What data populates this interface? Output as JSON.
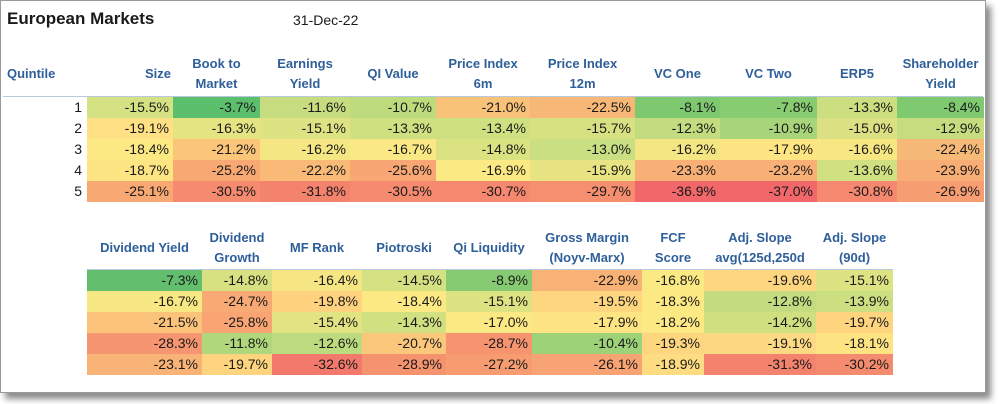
{
  "title": "European Markets",
  "date": "31-Dec-22",
  "table1": {
    "headers": [
      "Quintile",
      "Size",
      "Book to\nMarket",
      "Earnings\nYield",
      "QI Value",
      "Price Index\n6m",
      "Price Index\n12m",
      "VC One",
      "VC Two",
      "ERP5",
      "Shareholder\nYield"
    ],
    "rows": [
      {
        "quintile": "1",
        "values": [
          "-15.5%",
          "-3.7%",
          "-11.6%",
          "-10.7%",
          "-21.0%",
          "-22.5%",
          "-8.1%",
          "-7.8%",
          "-13.3%",
          "-8.4%"
        ],
        "colors": [
          "#d4e283",
          "#5cbf6d",
          "#c6dc7f",
          "#bddb7d",
          "#f8c379",
          "#f7b877",
          "#7ec970",
          "#88cc71",
          "#cbdf81",
          "#7fc970"
        ]
      },
      {
        "quintile": "2",
        "values": [
          "-19.1%",
          "-16.3%",
          "-15.1%",
          "-13.3%",
          "-13.4%",
          "-15.7%",
          "-12.3%",
          "-10.9%",
          "-15.0%",
          "-12.9%"
        ],
        "colors": [
          "#ffe084",
          "#e5e483",
          "#dde282",
          "#cfe081",
          "#cfe081",
          "#d8e182",
          "#c2dc7f",
          "#a9d57a",
          "#dbe182",
          "#c6dc7f"
        ]
      },
      {
        "quintile": "3",
        "values": [
          "-18.4%",
          "-21.2%",
          "-16.2%",
          "-16.7%",
          "-14.8%",
          "-13.0%",
          "-16.2%",
          "-17.9%",
          "-16.6%",
          "-22.4%"
        ],
        "colors": [
          "#fde983",
          "#fbc57a",
          "#f4e683",
          "#f9e883",
          "#dae282",
          "#c9df81",
          "#f4e683",
          "#fee482",
          "#f7e783",
          "#f7b977"
        ]
      },
      {
        "quintile": "4",
        "values": [
          "-18.7%",
          "-25.2%",
          "-22.2%",
          "-25.6%",
          "-16.9%",
          "-15.9%",
          "-23.3%",
          "-23.2%",
          "-13.6%",
          "-23.9%"
        ],
        "colors": [
          "#fee583",
          "#f8a873",
          "#f9ba78",
          "#f8a673",
          "#fbe983",
          "#e9e483",
          "#f8b076",
          "#f8b076",
          "#d1e081",
          "#f8ad75"
        ]
      },
      {
        "quintile": "5",
        "values": [
          "-25.1%",
          "-30.5%",
          "-31.8%",
          "-30.5%",
          "-30.7%",
          "-29.7%",
          "-36.9%",
          "-37.0%",
          "-30.8%",
          "-26.9%"
        ],
        "colors": [
          "#f8a873",
          "#f58a6e",
          "#f4836d",
          "#f58a6e",
          "#f5886e",
          "#f68f6f",
          "#f1676a",
          "#f1676a",
          "#f5886e",
          "#f69e72"
        ]
      }
    ]
  },
  "table2": {
    "headers": [
      "Dividend Yield",
      "Dividend\nGrowth",
      "MF Rank",
      "Piotroski",
      "Qi Liquidity",
      "Gross Margin\n(Noyv-Marx)",
      "FCF\nScore",
      "Adj. Slope\navg(125d,250d",
      "Adj. Slope\n(90d)"
    ],
    "rows": [
      {
        "values": [
          "-7.3%",
          "-14.8%",
          "-16.4%",
          "-14.5%",
          "-8.9%",
          "-22.9%",
          "-16.8%",
          "-19.6%",
          "-15.1%"
        ],
        "colors": [
          "#63be6d",
          "#d7e182",
          "#f5e683",
          "#d4e183",
          "#86cb72",
          "#f9b276",
          "#fbe983",
          "#fed680",
          "#dde282"
        ]
      },
      {
        "values": [
          "-16.7%",
          "-24.7%",
          "-19.8%",
          "-18.4%",
          "-15.1%",
          "-19.5%",
          "-18.3%",
          "-12.8%",
          "-13.9%"
        ],
        "colors": [
          "#f8e883",
          "#f8aa74",
          "#fed27f",
          "#fde983",
          "#dde282",
          "#fed680",
          "#fde983",
          "#c2dc7f",
          "#ccdf81"
        ]
      },
      {
        "values": [
          "-21.5%",
          "-25.8%",
          "-15.4%",
          "-14.3%",
          "-17.0%",
          "-17.9%",
          "-18.2%",
          "-14.2%",
          "-19.7%"
        ],
        "colors": [
          "#fbc279",
          "#f8a473",
          "#e2e382",
          "#d1e081",
          "#fce983",
          "#fee482",
          "#fde983",
          "#d0e081",
          "#fed47f"
        ]
      },
      {
        "values": [
          "-28.3%",
          "-11.8%",
          "-12.6%",
          "-20.7%",
          "-28.7%",
          "-10.4%",
          "-19.3%",
          "-19.1%",
          "-18.1%"
        ],
        "colors": [
          "#f69670",
          "#b0d77b",
          "#bcdb7e",
          "#fbc87b",
          "#f69470",
          "#9dd278",
          "#fed680",
          "#fed983",
          "#fee383"
        ]
      },
      {
        "values": [
          "-23.1%",
          "-19.7%",
          "-32.6%",
          "-28.9%",
          "-27.2%",
          "-26.1%",
          "-18.9%",
          "-31.3%",
          "-30.2%"
        ],
        "colors": [
          "#f9b376",
          "#fed47f",
          "#f2796b",
          "#f6936f",
          "#f79c71",
          "#f8a373",
          "#fedc81",
          "#f4836d",
          "#f58b6e"
        ]
      }
    ]
  }
}
